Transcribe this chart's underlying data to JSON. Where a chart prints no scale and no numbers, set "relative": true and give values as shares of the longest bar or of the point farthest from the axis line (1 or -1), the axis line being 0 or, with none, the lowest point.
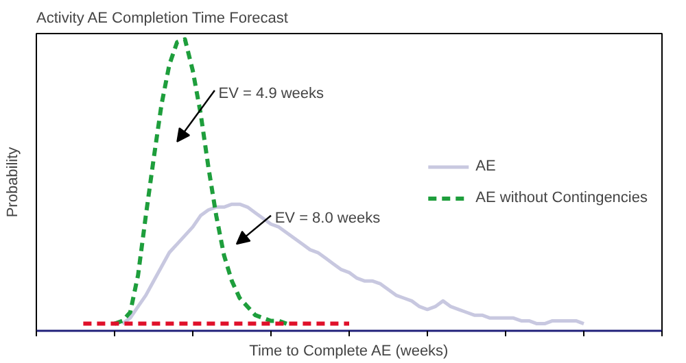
{
  "chart_data": {
    "type": "line",
    "title": "Activity AE Completion Time Forecast",
    "xlabel": "Time to Complete AE (weeks)",
    "ylabel": "Probability",
    "relative": true,
    "categories": [
      null,
      null,
      null,
      null,
      null,
      null,
      null,
      null,
      null,
      null,
      null,
      null,
      null,
      null,
      null,
      null,
      null,
      null,
      null,
      null,
      null,
      null,
      null,
      null,
      null,
      null,
      null,
      null,
      null,
      null,
      null,
      null,
      null,
      null,
      null,
      null,
      null,
      null,
      null,
      null,
      null,
      null,
      null,
      null,
      null,
      null,
      null,
      null,
      null,
      null,
      null,
      null,
      null,
      null,
      null,
      null,
      null,
      null,
      null,
      null,
      null,
      null,
      null,
      null,
      null,
      null,
      null,
      null,
      null,
      null,
      null,
      null,
      null,
      null,
      null,
      null,
      null,
      null,
      null,
      null,
      null
    ],
    "series": [
      {
        "name": "AE",
        "color": "#c8c8e0",
        "line_style": "solid",
        "values": [
          null,
          null,
          null,
          null,
          null,
          null,
          null,
          null,
          null,
          null,
          null,
          0,
          0.02,
          0.06,
          0.1,
          0.15,
          0.2,
          0.25,
          0.28,
          0.31,
          0.34,
          0.38,
          0.4,
          0.41,
          0.41,
          0.42,
          0.42,
          0.41,
          0.39,
          0.37,
          0.35,
          0.34,
          0.32,
          0.3,
          0.28,
          0.26,
          0.25,
          0.23,
          0.21,
          0.19,
          0.18,
          0.16,
          0.15,
          0.15,
          0.14,
          0.12,
          0.1,
          0.09,
          0.08,
          0.06,
          0.05,
          0.06,
          0.08,
          0.06,
          0.05,
          0.04,
          0.03,
          0.03,
          0.02,
          0.02,
          0.02,
          0.02,
          0.01,
          0.01,
          0,
          0,
          0.01,
          0.01,
          0.01,
          0.01,
          0,
          null,
          null,
          null,
          null,
          null,
          null,
          null,
          null,
          null,
          null
        ]
      },
      {
        "color": "#e0102a",
        "line_style": "dashed",
        "values": [
          null,
          null,
          null,
          null,
          null,
          null,
          0,
          0,
          0,
          0,
          0,
          0,
          0,
          0,
          0,
          0,
          0,
          0,
          0,
          0,
          0,
          0,
          0,
          0,
          0,
          0,
          0,
          0,
          0,
          0,
          0,
          0,
          0,
          0,
          0,
          0,
          0,
          0,
          0,
          0,
          0,
          null,
          null,
          null,
          null,
          null,
          null,
          null,
          null,
          null,
          null,
          null,
          null,
          null,
          null,
          null,
          null,
          null,
          null,
          null,
          null,
          null,
          null,
          null,
          null,
          null,
          null,
          null,
          null,
          null,
          null,
          null,
          null,
          null,
          null,
          null,
          null,
          null,
          null,
          null,
          null
        ]
      },
      {
        "name": "AE without Contingencies",
        "color": "#1e9e3c",
        "line_style": "dashed",
        "values": [
          null,
          null,
          null,
          null,
          null,
          null,
          null,
          null,
          null,
          null,
          0,
          0.01,
          0.04,
          0.17,
          0.38,
          0.58,
          0.77,
          0.91,
          0.99,
          1,
          0.89,
          0.74,
          0.55,
          0.38,
          0.24,
          0.15,
          0.09,
          0.06,
          0.03,
          0.02,
          0.01,
          0.01,
          0,
          null,
          null,
          null,
          null,
          null,
          null,
          null,
          null,
          null,
          null,
          null,
          null,
          null,
          null,
          null,
          null,
          null,
          null,
          null,
          null,
          null,
          null,
          null,
          null,
          null,
          null,
          null,
          null,
          null,
          null,
          null,
          null,
          null,
          null,
          null,
          null,
          null,
          null,
          null,
          null,
          null,
          null,
          null,
          null,
          null,
          null,
          null,
          null
        ]
      }
    ],
    "annotations": [
      "EV = 4.9 weeks",
      "EV = 8.0 weeks"
    ],
    "legend": "right",
    "grid": false,
    "marker": "none"
  }
}
